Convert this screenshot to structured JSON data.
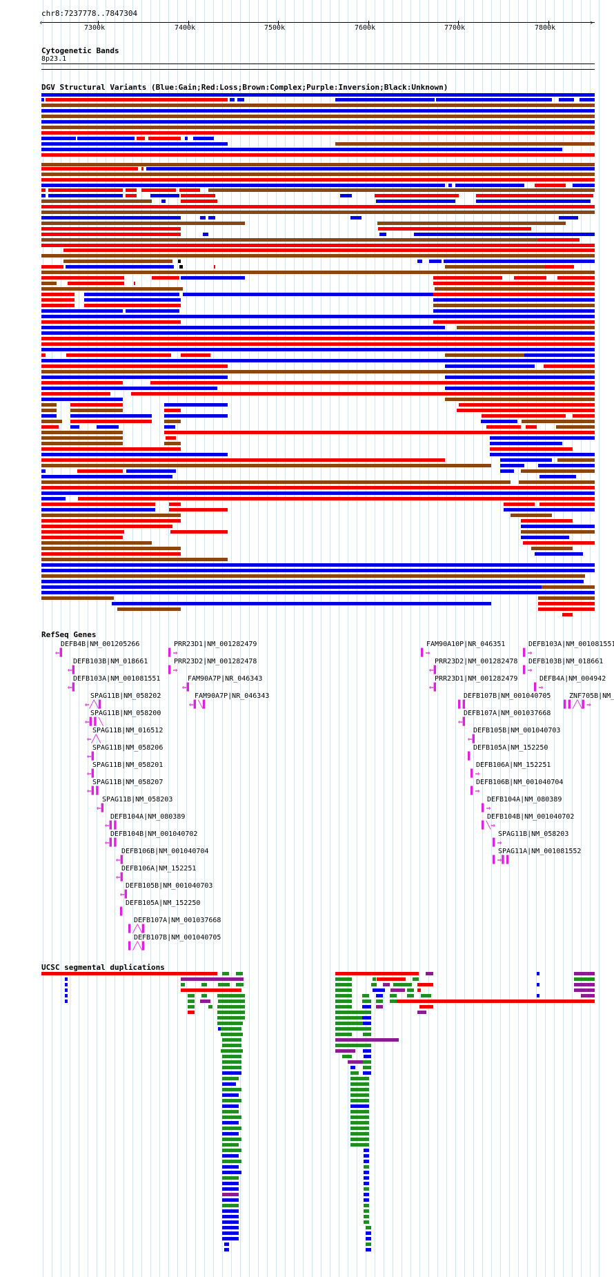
{
  "position": {
    "label": "chr8:7237778..7847304",
    "ticks": [
      "7300k",
      "7400k",
      "7500k",
      "7600k",
      "7700k",
      "7800k"
    ]
  },
  "tracks": {
    "cyto": {
      "title": "Cytogenetic Bands",
      "band": "8p23.1"
    },
    "dgv": {
      "title": "DGV Structural Variants (Blue:Gain;Red:Loss;Brown:Complex;Purple:Inversion;Black:Unknown)"
    },
    "refseq": {
      "title": "RefSeq Genes"
    },
    "segdup": {
      "title": "UCSC segmental duplications"
    }
  },
  "colors": {
    "gain": "#0000e6",
    "loss": "#f20000",
    "complex": "#8b4513",
    "inversion": "#8b1c8b",
    "unknown": "#000000",
    "gene": "#e020e0",
    "segdup_red": "#f20000",
    "segdup_green": "#228b22",
    "segdup_blue": "#0000e6",
    "segdup_purple": "#8b1c8b"
  },
  "genes": [
    {
      "label": "DEFB4B|NM_001205266",
      "glyph": "⇐▌"
    },
    {
      "label": "DEFB103B|NM_018661",
      "glyph": "⇐▌"
    },
    {
      "label": "DEFB103A|NM_001081551",
      "glyph": "⇐▌"
    },
    {
      "label": "SPAG11B|NM_058202",
      "glyph": "⇐╱╲▌"
    },
    {
      "label": "SPAG11B|NM_058200",
      "glyph": "⇐▌▌╲"
    },
    {
      "label": "SPAG11B|NM_016512",
      "glyph": "⇐╱╲"
    },
    {
      "label": "SPAG11B|NM_058206",
      "glyph": "⇐▌"
    },
    {
      "label": "SPAG11B|NM_058201",
      "glyph": "⇐▌"
    },
    {
      "label": "SPAG11B|NM_058207",
      "glyph": "⇐▌▌"
    },
    {
      "label": "SPAG11B|NM_058203",
      "glyph": "⇐▌"
    },
    {
      "label": "DEFB104A|NM_080389",
      "glyph": "⇐▌▌"
    },
    {
      "label": "DEFB104B|NM_001040702",
      "glyph": "⇐▌▌"
    },
    {
      "label": "DEFB106B|NM_001040704",
      "glyph": "⇐▌"
    },
    {
      "label": "DEFB106A|NM_152251",
      "glyph": "⇐▌"
    },
    {
      "label": "DEFB105B|NM_001040703",
      "glyph": "⇐▌"
    },
    {
      "label": "DEFB105A|NM_152250",
      "glyph": "▌"
    },
    {
      "label": "DEFB107A|NM_001037668",
      "glyph": "▌╱╲▌"
    },
    {
      "label": "DEFB107B|NM_001040705",
      "glyph": "▌╱╲▌"
    },
    {
      "label": "PRR23D1|NM_001282479",
      "glyph": "▌⇒"
    },
    {
      "label": "PRR23D2|NM_001282478",
      "glyph": "▌⇒"
    },
    {
      "label": "FAM90A7P|NR_046343",
      "glyph": "⇐▌"
    },
    {
      "label": "FAM90A7P|NR_046343",
      "glyph": "⇐▌╲▌"
    },
    {
      "label": "FAM90A10P|NR_046351",
      "glyph": "▌⇒"
    },
    {
      "label": "PRR23D2|NM_001282478",
      "glyph": "⇐▌"
    },
    {
      "label": "PRR23D1|NM_001282479",
      "glyph": "⇐▌"
    },
    {
      "label": "DEFB107B|NM_001040705",
      "glyph": "▌▌"
    },
    {
      "label": "DEFB107A|NM_001037668",
      "glyph": "⇐▌"
    },
    {
      "label": "DEFB105B|NM_001040703",
      "glyph": "⇐▌"
    },
    {
      "label": "DEFB105A|NM_152250",
      "glyph": "▌"
    },
    {
      "label": "DEFB106A|NM_152251",
      "glyph": "▌⇒"
    },
    {
      "label": "DEFB106B|NM_001040704",
      "glyph": "▌⇒"
    },
    {
      "label": "DEFB104A|NM_080389",
      "glyph": "▌⇒"
    },
    {
      "label": "DEFB104B|NM_001040702",
      "glyph": "▌╲⇒"
    },
    {
      "label": "SPAG11B|NM_058203",
      "glyph": "▌⇒"
    },
    {
      "label": "SPAG11A|NM_001081552",
      "glyph": "▌⇒▌▌"
    },
    {
      "label": "DEFB103A|NM_001081551",
      "glyph": "▌⇒"
    },
    {
      "label": "DEFB103B|NM_018661",
      "glyph": "▌⇒"
    },
    {
      "label": "DEFB4A|NM_004942",
      "glyph": "▌⇒"
    },
    {
      "label": "ZNF705B|NM_001",
      "glyph": "▌▌╱╲▌⇒"
    }
  ]
}
